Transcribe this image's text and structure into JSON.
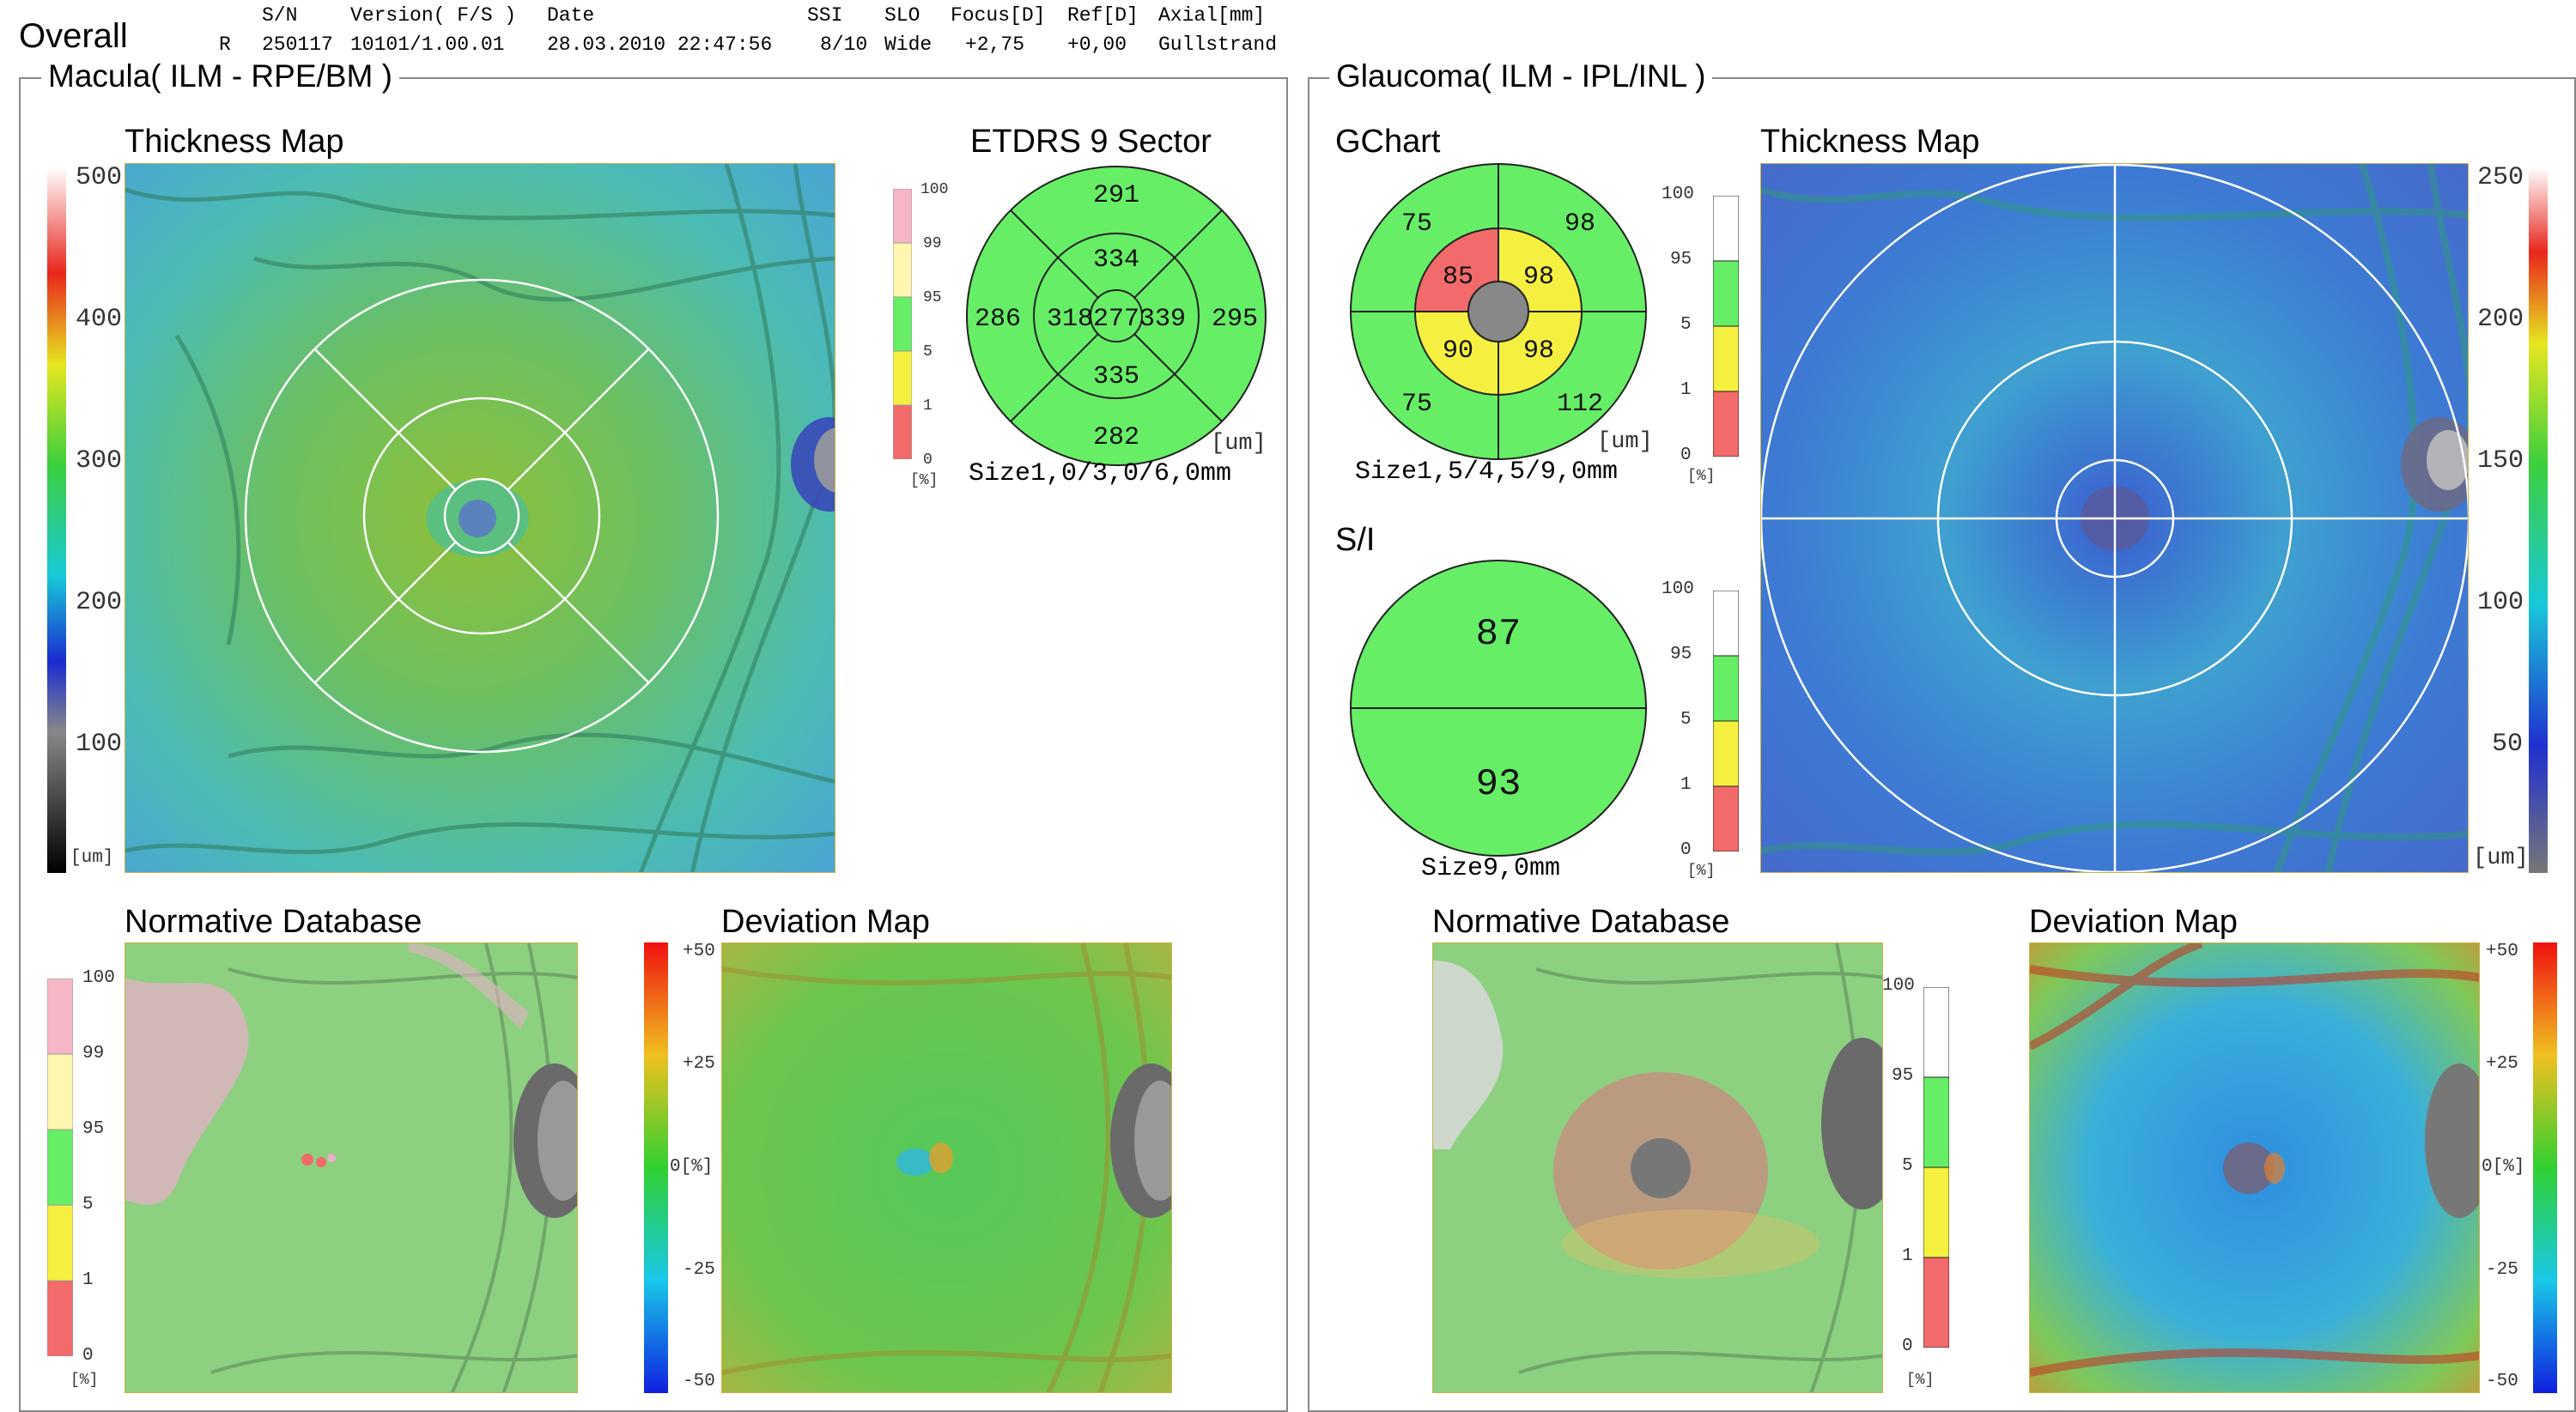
{
  "header": {
    "title": "Overall",
    "eye": "R",
    "columns": [
      {
        "label": "S/N",
        "value": "250117"
      },
      {
        "label": "Version( F/S )",
        "value": "10101/1.00.01"
      },
      {
        "label": "Date",
        "value": "28.03.2010 22:47:56"
      },
      {
        "label": "SSI",
        "value": "8/10"
      },
      {
        "label": "SLO",
        "value": "Wide"
      },
      {
        "label": "Focus[D]",
        "value": "+2,75"
      },
      {
        "label": "Ref[D]",
        "value": "+0,00"
      },
      {
        "label": "Axial[mm]",
        "value": "Gullstrand"
      }
    ]
  },
  "macula": {
    "title": "Macula( ILM - RPE/BM )",
    "thickness_map": {
      "title": "Thickness Map",
      "scale": [
        "500",
        "400",
        "300",
        "200",
        "100"
      ],
      "unit": "[um]"
    },
    "etdrs": {
      "title": "ETDRS 9 Sector",
      "center": "277",
      "inner": {
        "superior": "334",
        "temporal": "318",
        "nasal": "339",
        "inferior": "335"
      },
      "outer": {
        "superior": "291",
        "temporal": "286",
        "nasal": "295",
        "inferior": "282"
      },
      "unit": "[um]",
      "size": "Size1,0/3,0/6,0mm",
      "legend": [
        "100",
        "99",
        "95",
        "5",
        "1",
        "0"
      ],
      "legend_unit": "[%]"
    },
    "normative_db": {
      "title": "Normative Database",
      "legend": [
        "100",
        "99",
        "95",
        "5",
        "1",
        "0"
      ],
      "unit": "[%]"
    },
    "deviation_map": {
      "title": "Deviation Map",
      "scale": [
        "+50",
        "+25",
        "0[%]",
        "-25",
        "-50"
      ]
    }
  },
  "glaucoma": {
    "title": "Glaucoma( ILM - IPL/INL )",
    "gchart": {
      "title": "GChart",
      "inner": {
        "top_left": "85",
        "top_right": "98",
        "bottom_left": "90",
        "bottom_right": "98"
      },
      "outer": {
        "top_left": "75",
        "top_right": "98",
        "bottom_left": "75",
        "bottom_right": "112"
      },
      "unit": "[um]",
      "size": "Size1,5/4,5/9,0mm",
      "legend": [
        "100",
        "95",
        "5",
        "1",
        "0"
      ],
      "legend_unit": "[%]"
    },
    "si": {
      "title": "S/I",
      "superior": "87",
      "inferior": "93",
      "size": "Size9,0mm",
      "legend": [
        "100",
        "95",
        "5",
        "1",
        "0"
      ],
      "legend_unit": "[%]"
    },
    "thickness_map": {
      "title": "Thickness Map",
      "scale": [
        "250",
        "200",
        "150",
        "100",
        "50"
      ],
      "unit": "[um]"
    },
    "normative_db": {
      "title": "Normative Database",
      "legend": [
        "100",
        "95",
        "5",
        "1",
        "0"
      ],
      "unit": "[%]"
    },
    "deviation_map": {
      "title": "Deviation Map",
      "scale": [
        "+50",
        "+25",
        "0[%]",
        "-25",
        "-50"
      ]
    }
  },
  "colors": {
    "normal": "#66ee66",
    "borderline": "#f5f040",
    "abnormal": "#f36a6a",
    "super_normal": "#fff7b0",
    "above_99": "#f7b6c6",
    "fundus_green": "#7fc476",
    "panel_border": "#888888"
  }
}
